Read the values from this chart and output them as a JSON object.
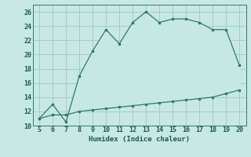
{
  "xlabel": "Humidex (Indice chaleur)",
  "x_values": [
    5,
    6,
    7,
    8,
    9,
    10,
    11,
    12,
    13,
    14,
    15,
    16,
    17,
    18,
    19,
    20
  ],
  "upper_line": [
    11,
    13,
    10.5,
    17,
    20.5,
    23.5,
    21.5,
    24.5,
    26,
    24.5,
    25,
    25,
    24.5,
    23.5,
    23.5,
    18.5
  ],
  "lower_line": [
    11,
    11.5,
    11.5,
    12,
    12.2,
    12.4,
    12.6,
    12.8,
    13.0,
    13.2,
    13.4,
    13.6,
    13.8,
    14.0,
    14.5,
    15.0
  ],
  "line_color": "#2d7a6e",
  "fill_color": "#c5e8e4",
  "bg_color": "#c8e8e3",
  "grid_color": "#a0c8c2",
  "xlim": [
    4.5,
    20.5
  ],
  "ylim": [
    10,
    27
  ],
  "xticks": [
    5,
    6,
    7,
    8,
    9,
    10,
    11,
    12,
    13,
    14,
    15,
    16,
    17,
    18,
    19,
    20
  ],
  "yticks": [
    10,
    12,
    14,
    16,
    18,
    20,
    22,
    24,
    26
  ]
}
